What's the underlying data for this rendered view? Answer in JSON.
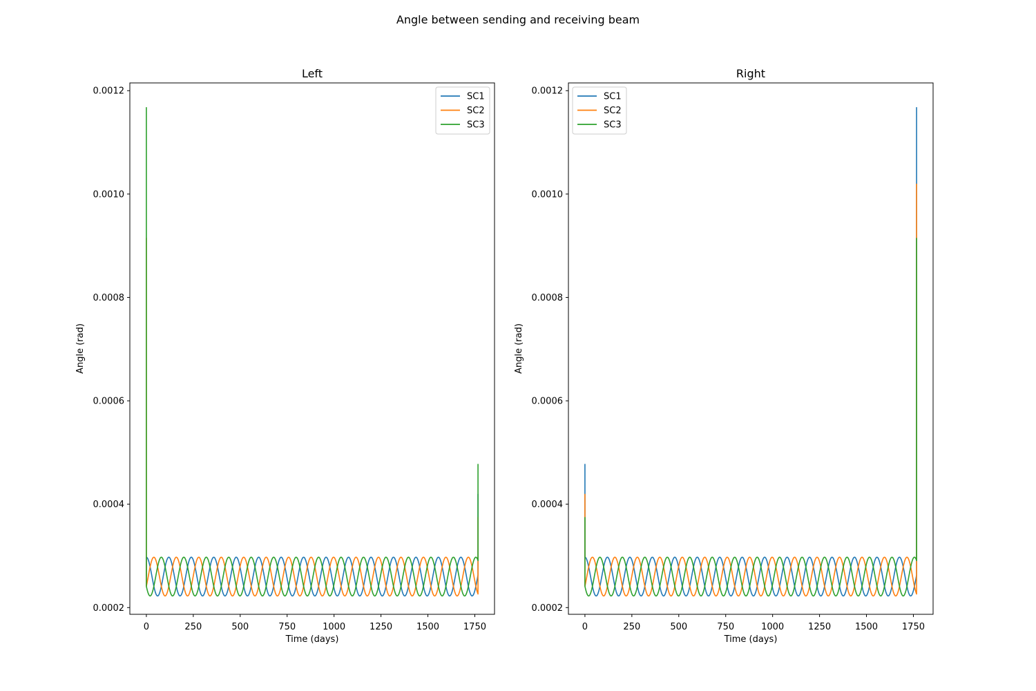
{
  "figure": {
    "suptitle": "Angle between sending and receiving beam",
    "colors": {
      "SC1": "#1f77b4",
      "SC2": "#ff7f0e",
      "SC3": "#2ca02c"
    }
  },
  "chart_data": [
    {
      "type": "line",
      "title": "Left",
      "xlabel": "Time (days)",
      "ylabel": "Angle (rad)",
      "xlim": [
        -88,
        1855
      ],
      "ylim": [
        0.000187,
        0.001215
      ],
      "xticks": [
        0,
        250,
        500,
        750,
        1000,
        1250,
        1500,
        1750
      ],
      "xtick_labels": [
        "0",
        "250",
        "500",
        "750",
        "1000",
        "1250",
        "1500",
        "1750"
      ],
      "yticks": [
        0.0002,
        0.0004,
        0.0006,
        0.0008,
        0.001,
        0.0012
      ],
      "ytick_labels": [
        "0.0002",
        "0.0004",
        "0.0006",
        "0.0008",
        "0.0010",
        "0.0012"
      ],
      "legend_position": "upper right",
      "grid": false,
      "series": [
        {
          "name": "SC1",
          "color": "#1f77b4",
          "baseline": 0.00026,
          "amplitude": 3.75e-05,
          "period_days": 119.7,
          "phase_days": 0,
          "spike_start": 0.00026,
          "spike_end": 0.00042,
          "x_end": 1767
        },
        {
          "name": "SC2",
          "color": "#ff7f0e",
          "baseline": 0.00026,
          "amplitude": 3.75e-05,
          "period_days": 119.7,
          "phase_days": 39.9,
          "spike_start": 0.000915,
          "spike_end": 0.000375,
          "x_end": 1767
        },
        {
          "name": "SC3",
          "color": "#2ca02c",
          "baseline": 0.00026,
          "amplitude": 3.75e-05,
          "period_days": 119.7,
          "phase_days": 79.8,
          "spike_start": 0.001168,
          "spike_end": 0.000478,
          "x_end": 1767
        }
      ]
    },
    {
      "type": "line",
      "title": "Right",
      "xlabel": "Time (days)",
      "ylabel": "Angle (rad)",
      "xlim": [
        -88,
        1855
      ],
      "ylim": [
        0.000187,
        0.001215
      ],
      "xticks": [
        0,
        250,
        500,
        750,
        1000,
        1250,
        1500,
        1750
      ],
      "xtick_labels": [
        "0",
        "250",
        "500",
        "750",
        "1000",
        "1250",
        "1500",
        "1750"
      ],
      "yticks": [
        0.0002,
        0.0004,
        0.0006,
        0.0008,
        0.001,
        0.0012
      ],
      "ytick_labels": [
        "0.0002",
        "0.0004",
        "0.0006",
        "0.0008",
        "0.0010",
        "0.0012"
      ],
      "legend_position": "upper left",
      "grid": false,
      "series": [
        {
          "name": "SC1",
          "color": "#1f77b4",
          "baseline": 0.00026,
          "amplitude": 3.75e-05,
          "period_days": 119.7,
          "phase_days": 0,
          "spike_start": 0.000478,
          "spike_end": 0.001168,
          "x_end": 1767
        },
        {
          "name": "SC2",
          "color": "#ff7f0e",
          "baseline": 0.00026,
          "amplitude": 3.75e-05,
          "period_days": 119.7,
          "phase_days": 39.9,
          "spike_start": 0.00042,
          "spike_end": 0.00102,
          "x_end": 1767
        },
        {
          "name": "SC3",
          "color": "#2ca02c",
          "baseline": 0.00026,
          "amplitude": 3.75e-05,
          "period_days": 119.7,
          "phase_days": 79.8,
          "spike_start": 0.000375,
          "spike_end": 0.000915,
          "x_end": 1767
        }
      ]
    }
  ]
}
